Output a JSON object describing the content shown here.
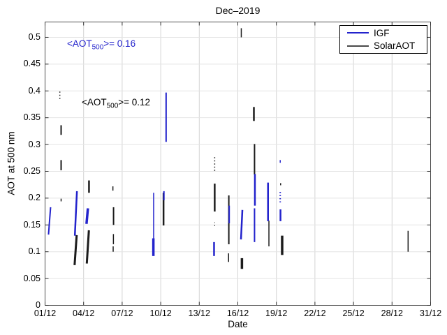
{
  "figure": {
    "title": "Dec–2019"
  },
  "axes": {
    "xlabel": "Date",
    "ylabel": "AOT at 500 nm"
  },
  "legend": {
    "items": [
      {
        "label": "IGF",
        "color": "#2323cc"
      },
      {
        "label": "SolarAOT",
        "color": "#4a4a4a"
      }
    ]
  },
  "chart_data": {
    "type": "scatter",
    "title": "Dec–2019",
    "xlabel": "Date",
    "ylabel": "AOT at 500 nm",
    "xlim_days": [
      1,
      31
    ],
    "ylim": [
      0,
      0.5286
    ],
    "x_tick_days": [
      1,
      4,
      7,
      10,
      13,
      16,
      19,
      22,
      25,
      28,
      31
    ],
    "x_tick_labels": [
      "01/12",
      "04/12",
      "07/12",
      "10/12",
      "13/12",
      "16/12",
      "19/12",
      "22/12",
      "25/12",
      "28/12",
      "31/12"
    ],
    "y_ticks": [
      0,
      0.05,
      0.1,
      0.15,
      0.2,
      0.25,
      0.3,
      0.35,
      0.4,
      0.45,
      0.5
    ],
    "y_tick_labels": [
      "0",
      "0.05",
      "0.1",
      "0.15",
      "0.2",
      "0.25",
      "0.3",
      "0.35",
      "0.4",
      "0.45",
      "0.5"
    ],
    "grid": true,
    "legend_position": "top-right",
    "annotations": [
      {
        "prefix": "<AOT",
        "sub": "500",
        "suffix": ">= 0.16",
        "series": "IGF",
        "mean_aot_500": 0.16,
        "color": "#2323cc",
        "day": 2.71,
        "aot": 0.498
      },
      {
        "prefix": "<AOT",
        "sub": "500",
        "suffix": ">= 0.12",
        "series": "SolarAOT",
        "mean_aot_500": 0.12,
        "color": "#000000",
        "day": 3.85,
        "aot": 0.389
      }
    ],
    "series": [
      {
        "name": "SolarAOT",
        "color": "#1c1c1c",
        "segments": [
          {
            "day": 2.15,
            "aot": [
              0.385,
              0.399
            ],
            "w": 1.5,
            "dotted": true
          },
          {
            "day": 2.25,
            "aot": [
              0.318,
              0.336
            ],
            "w": 2
          },
          {
            "day": 2.25,
            "aot": [
              0.252,
              0.271
            ],
            "w": 2
          },
          {
            "day": 2.25,
            "aot": [
              0.194,
              0.199
            ],
            "w": 1.5
          },
          {
            "day": 3.38,
            "aot": [
              0.075,
              0.131
            ],
            "w": 3,
            "slant": 1.5
          },
          {
            "day": 4.42,
            "aot": [
              0.21,
              0.233
            ],
            "w": 2.5
          },
          {
            "day": 4.33,
            "aot": [
              0.078,
              0.14
            ],
            "w": 3,
            "slant": 1.5
          },
          {
            "day": 6.28,
            "aot": [
              0.214,
              0.222
            ],
            "w": 1.5
          },
          {
            "day": 6.33,
            "aot": [
              0.15,
              0.183
            ],
            "w": 2
          },
          {
            "day": 6.32,
            "aot": [
              0.114,
              0.133
            ],
            "w": 1.5
          },
          {
            "day": 6.3,
            "aot": [
              0.1,
              0.11
            ],
            "w": 1.5
          },
          {
            "day": 10.22,
            "aot": [
              0.149,
              0.21
            ],
            "w": 2.5
          },
          {
            "day": 14.2,
            "aot": [
              0.251,
              0.277
            ],
            "w": 1.5,
            "dotted": true
          },
          {
            "day": 14.2,
            "aot": [
              0.175,
              0.227
            ],
            "w": 2.5
          },
          {
            "day": 14.2,
            "aot": [
              0.148,
              0.155
            ],
            "w": 1,
            "dotted": true
          },
          {
            "day": 15.3,
            "aot": [
              0.114,
              0.205
            ],
            "w": 2
          },
          {
            "day": 15.28,
            "aot": [
              0.081,
              0.097
            ],
            "w": 1.5
          },
          {
            "day": 16.27,
            "aot": [
              0.5,
              0.517
            ],
            "w": 1.5
          },
          {
            "day": 16.32,
            "aot": [
              0.068,
              0.088
            ],
            "w": 3.5
          },
          {
            "day": 17.25,
            "aot": [
              0.344,
              0.37
            ],
            "w": 2.5
          },
          {
            "day": 17.3,
            "aot": [
              0.244,
              0.301
            ],
            "w": 2
          },
          {
            "day": 18.42,
            "aot": [
              0.11,
              0.158
            ],
            "w": 1.5
          },
          {
            "day": 19.33,
            "aot": [
              0.224,
              0.228
            ],
            "w": 1.5
          },
          {
            "day": 19.45,
            "aot": [
              0.094,
              0.13
            ],
            "w": 3.5
          },
          {
            "day": 29.25,
            "aot": [
              0.1,
              0.139
            ],
            "w": 1.5
          }
        ]
      },
      {
        "name": "IGF",
        "color": "#2323cc",
        "segments": [
          {
            "day": 1.35,
            "aot": [
              0.132,
              0.183
            ],
            "w": 2,
            "slant": 1.5
          },
          {
            "day": 3.4,
            "aot": [
              0.13,
              0.213
            ],
            "w": 2.5,
            "slant": 1.5
          },
          {
            "day": 4.28,
            "aot": [
              0.152,
              0.181
            ],
            "w": 3.5,
            "slant": 1
          },
          {
            "day": 9.45,
            "aot": [
              0.095,
              0.21
            ],
            "w": 1.5
          },
          {
            "day": 9.43,
            "aot": [
              0.092,
              0.125
            ],
            "w": 3.5
          },
          {
            "day": 10.25,
            "aot": [
              0.196,
              0.213
            ],
            "w": 2
          },
          {
            "day": 10.42,
            "aot": [
              0.305,
              0.397
            ],
            "w": 2
          },
          {
            "day": 14.15,
            "aot": [
              0.092,
              0.118
            ],
            "w": 2.5
          },
          {
            "day": 15.33,
            "aot": [
              0.153,
              0.186
            ],
            "w": 2
          },
          {
            "day": 16.3,
            "aot": [
              0.123,
              0.178
            ],
            "w": 2.5,
            "slant": 1
          },
          {
            "day": 17.33,
            "aot": [
              0.186,
              0.245
            ],
            "w": 2.5
          },
          {
            "day": 17.3,
            "aot": [
              0.118,
              0.181
            ],
            "w": 2
          },
          {
            "day": 18.35,
            "aot": [
              0.157,
              0.229
            ],
            "w": 2.5
          },
          {
            "day": 19.3,
            "aot": [
              0.266,
              0.271
            ],
            "w": 1.5
          },
          {
            "day": 19.3,
            "aot": [
              0.192,
              0.212
            ],
            "w": 2,
            "dotted": true
          },
          {
            "day": 19.32,
            "aot": [
              0.157,
              0.179
            ],
            "w": 2.5
          }
        ]
      }
    ]
  }
}
